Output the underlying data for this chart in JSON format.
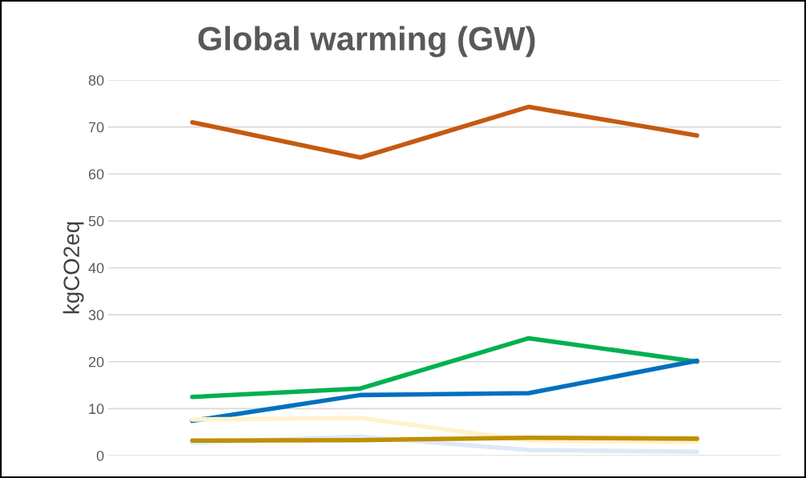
{
  "chart_data": {
    "type": "line",
    "title": "Global warming (GW)",
    "ylabel": "kgCO2eq",
    "categories": [
      null,
      null,
      null,
      null
    ],
    "series": [
      {
        "color": "#c55a11",
        "values": [
          71,
          63.5,
          74.3,
          68.2
        ]
      },
      {
        "color": "#00b050",
        "values": [
          12.5,
          14.3,
          25,
          20
        ]
      },
      {
        "color": "#0070c0",
        "values": [
          7.4,
          12.9,
          13.3,
          20.2
        ]
      },
      {
        "color": "#fff2cc",
        "values": [
          7.7,
          8.0,
          3.2,
          2.9
        ]
      },
      {
        "color": "#dee9f6",
        "values": [
          2.8,
          4.0,
          1.2,
          0.8
        ]
      },
      {
        "color": "#bf9000",
        "values": [
          3.2,
          3.3,
          3.8,
          3.6
        ]
      }
    ],
    "ylim": [
      0,
      80
    ],
    "yticks": [
      0,
      10,
      20,
      30,
      40,
      50,
      60,
      70,
      80
    ],
    "grid": "y",
    "tick_labels": "y",
    "marker": "none",
    "line_style": "solid"
  }
}
